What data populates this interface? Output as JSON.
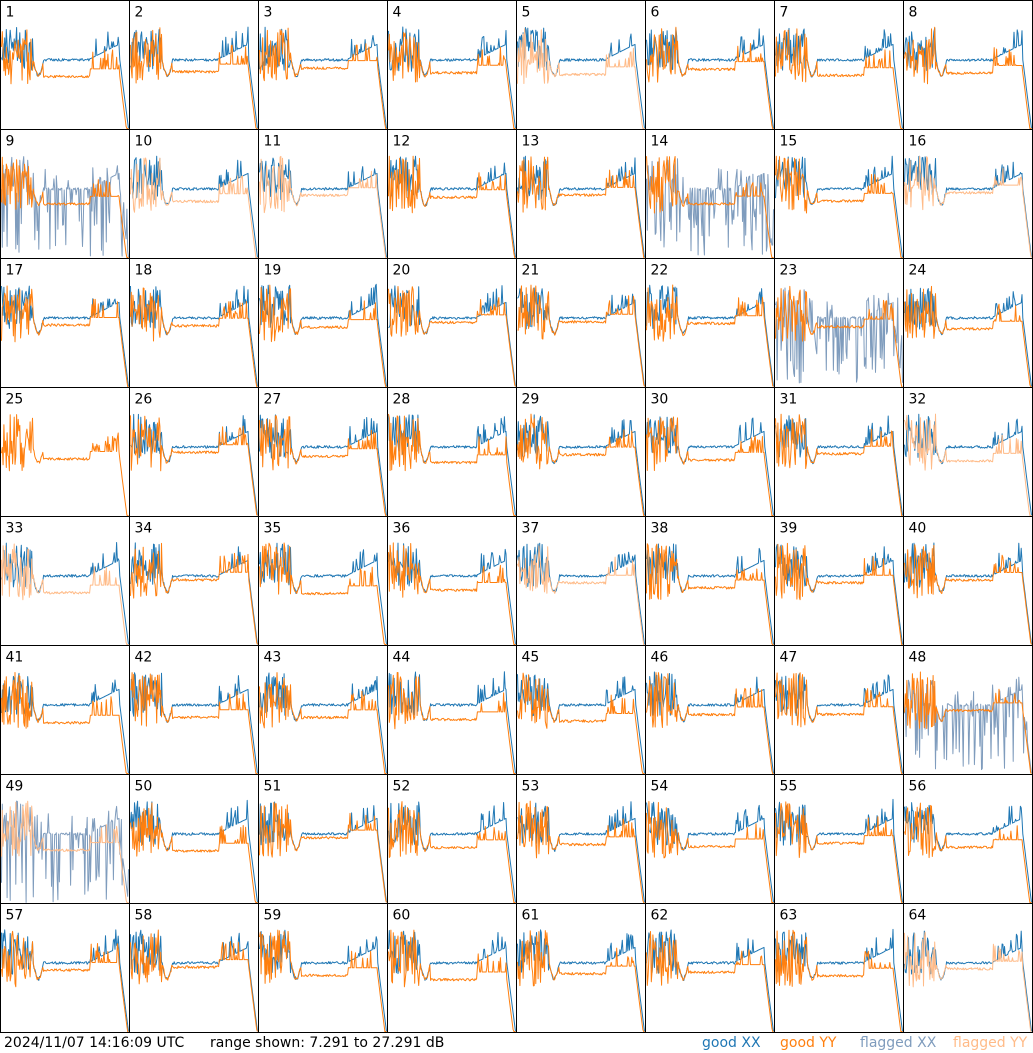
{
  "footer": {
    "timestamp": "2024/11/07 14:16:09 UTC",
    "range": "range shown: 7.291 to 27.291 dB"
  },
  "legend": [
    {
      "key": "good-xx",
      "label": "good XX",
      "color": "#1f77b4"
    },
    {
      "key": "good-yy",
      "label": "good YY",
      "color": "#ff7f0e"
    },
    {
      "key": "flagged-xx",
      "label": "flagged XX",
      "color": "#7f9cbd"
    },
    {
      "key": "flagged-yy",
      "label": "flagged YY",
      "color": "#ffbb88"
    }
  ],
  "columns": 8,
  "panels": [
    {
      "id": 1,
      "xx": "good-xx",
      "yy": "good-yy"
    },
    {
      "id": 2,
      "xx": "good-xx",
      "yy": "good-yy"
    },
    {
      "id": 3,
      "xx": "good-xx",
      "yy": "good-yy"
    },
    {
      "id": 4,
      "xx": "good-xx",
      "yy": "good-yy"
    },
    {
      "id": 5,
      "xx": "good-xx",
      "yy": "flagged-yy"
    },
    {
      "id": 6,
      "xx": "good-xx",
      "yy": "good-yy"
    },
    {
      "id": 7,
      "xx": "good-xx",
      "yy": "good-yy"
    },
    {
      "id": 8,
      "xx": "good-xx",
      "yy": "good-yy"
    },
    {
      "id": 9,
      "xx": "flagged-xx",
      "yy": "good-yy"
    },
    {
      "id": 10,
      "xx": "good-xx",
      "yy": "flagged-yy"
    },
    {
      "id": 11,
      "xx": "good-xx",
      "yy": "flagged-yy"
    },
    {
      "id": 12,
      "xx": "good-xx",
      "yy": "good-yy"
    },
    {
      "id": 13,
      "xx": "good-xx",
      "yy": "good-yy"
    },
    {
      "id": 14,
      "xx": "flagged-xx",
      "yy": "good-yy"
    },
    {
      "id": 15,
      "xx": "good-xx",
      "yy": "good-yy"
    },
    {
      "id": 16,
      "xx": "good-xx",
      "yy": "flagged-yy"
    },
    {
      "id": 17,
      "xx": "good-xx",
      "yy": "good-yy"
    },
    {
      "id": 18,
      "xx": "good-xx",
      "yy": "good-yy"
    },
    {
      "id": 19,
      "xx": "good-xx",
      "yy": "good-yy"
    },
    {
      "id": 20,
      "xx": "good-xx",
      "yy": "good-yy"
    },
    {
      "id": 21,
      "xx": "good-xx",
      "yy": "good-yy"
    },
    {
      "id": 22,
      "xx": "good-xx",
      "yy": "good-yy"
    },
    {
      "id": 23,
      "xx": "flagged-xx",
      "yy": "good-yy"
    },
    {
      "id": 24,
      "xx": "good-xx",
      "yy": "good-yy"
    },
    {
      "id": 25,
      "xx": null,
      "yy": "good-yy"
    },
    {
      "id": 26,
      "xx": "good-xx",
      "yy": "good-yy"
    },
    {
      "id": 27,
      "xx": "good-xx",
      "yy": "good-yy"
    },
    {
      "id": 28,
      "xx": "good-xx",
      "yy": "good-yy"
    },
    {
      "id": 29,
      "xx": "good-xx",
      "yy": "good-yy"
    },
    {
      "id": 30,
      "xx": "good-xx",
      "yy": "good-yy"
    },
    {
      "id": 31,
      "xx": "good-xx",
      "yy": "good-yy"
    },
    {
      "id": 32,
      "xx": "good-xx",
      "yy": "flagged-yy"
    },
    {
      "id": 33,
      "xx": "good-xx",
      "yy": "flagged-yy"
    },
    {
      "id": 34,
      "xx": "good-xx",
      "yy": "good-yy"
    },
    {
      "id": 35,
      "xx": "good-xx",
      "yy": "good-yy"
    },
    {
      "id": 36,
      "xx": "good-xx",
      "yy": "good-yy"
    },
    {
      "id": 37,
      "xx": "good-xx",
      "yy": "flagged-yy"
    },
    {
      "id": 38,
      "xx": "good-xx",
      "yy": "good-yy"
    },
    {
      "id": 39,
      "xx": "good-xx",
      "yy": "good-yy"
    },
    {
      "id": 40,
      "xx": "good-xx",
      "yy": "good-yy"
    },
    {
      "id": 41,
      "xx": "good-xx",
      "yy": "good-yy"
    },
    {
      "id": 42,
      "xx": "good-xx",
      "yy": "good-yy"
    },
    {
      "id": 43,
      "xx": "good-xx",
      "yy": "good-yy"
    },
    {
      "id": 44,
      "xx": "good-xx",
      "yy": "good-yy"
    },
    {
      "id": 45,
      "xx": "good-xx",
      "yy": "good-yy"
    },
    {
      "id": 46,
      "xx": "good-xx",
      "yy": "good-yy"
    },
    {
      "id": 47,
      "xx": "good-xx",
      "yy": "good-yy"
    },
    {
      "id": 48,
      "xx": "flagged-xx",
      "yy": "good-yy"
    },
    {
      "id": 49,
      "xx": "flagged-xx",
      "yy": "flagged-yy"
    },
    {
      "id": 50,
      "xx": "good-xx",
      "yy": "good-yy"
    },
    {
      "id": 51,
      "xx": "good-xx",
      "yy": "good-yy"
    },
    {
      "id": 52,
      "xx": "good-xx",
      "yy": "good-yy"
    },
    {
      "id": 53,
      "xx": "good-xx",
      "yy": "good-yy"
    },
    {
      "id": 54,
      "xx": "good-xx",
      "yy": "good-yy"
    },
    {
      "id": 55,
      "xx": "good-xx",
      "yy": "good-yy"
    },
    {
      "id": 56,
      "xx": "good-xx",
      "yy": "good-yy"
    },
    {
      "id": 57,
      "xx": "good-xx",
      "yy": "good-yy"
    },
    {
      "id": 58,
      "xx": "good-xx",
      "yy": "good-yy"
    },
    {
      "id": 59,
      "xx": "good-xx",
      "yy": "good-yy"
    },
    {
      "id": 60,
      "xx": "good-xx",
      "yy": "good-yy"
    },
    {
      "id": 61,
      "xx": "good-xx",
      "yy": "good-yy"
    },
    {
      "id": 62,
      "xx": "good-xx",
      "yy": "good-yy"
    },
    {
      "id": 63,
      "xx": "good-xx",
      "yy": "good-yy"
    },
    {
      "id": 64,
      "xx": "good-xx",
      "yy": "flagged-yy"
    }
  ]
}
